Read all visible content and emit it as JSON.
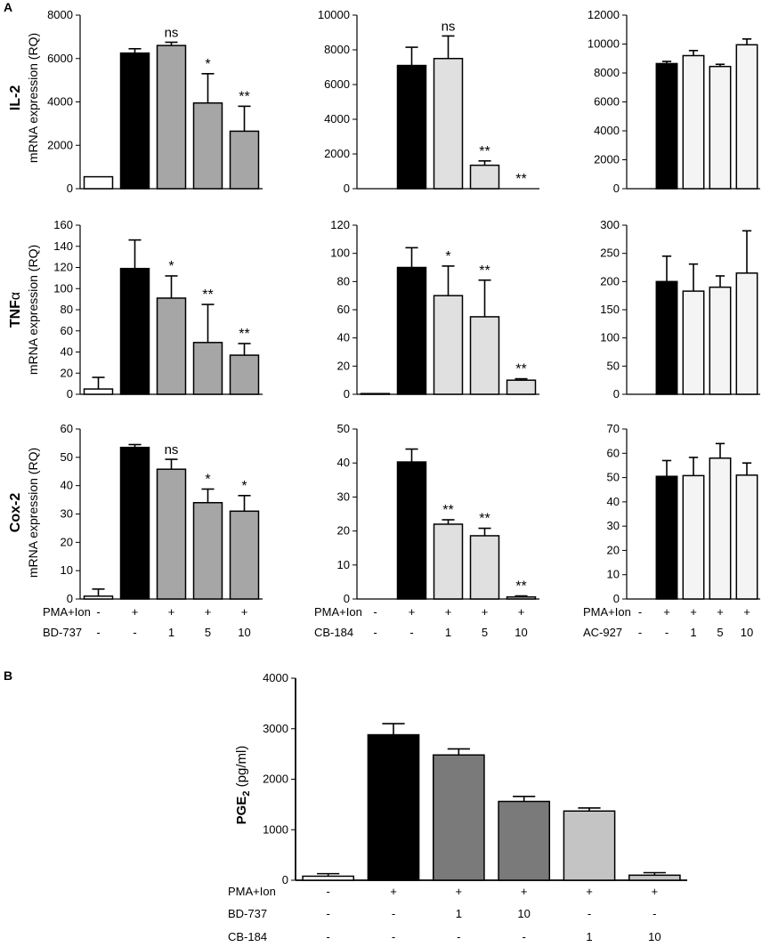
{
  "panel_labels": {
    "a": "A",
    "b": "B"
  },
  "colors": {
    "black": "#000000",
    "mid_gray": "#a6a6a6",
    "light_gray": "#e0e0e0",
    "near_white": "#f4f4f4",
    "white": "#ffffff",
    "dark_gray": "#7a7a7a",
    "silver": "#c4c4c4"
  },
  "row_labels": {
    "il2": {
      "gene": "IL-2",
      "sub": "mRNA expression (RQ)"
    },
    "tnf": {
      "gene": "TNF",
      "greek": "α",
      "sub": "mRNA expression (RQ)"
    },
    "cox2": {
      "gene": "Cox-2",
      "sub": "mRNA expression (RQ)"
    }
  },
  "legend_rows": {
    "a_col1": [
      {
        "label": "PMA+Ion",
        "values": [
          "-",
          "+",
          "+",
          "+",
          "+"
        ]
      },
      {
        "label": "BD-737",
        "values": [
          "-",
          "-",
          "1",
          "5",
          "10"
        ]
      }
    ],
    "a_col2": [
      {
        "label": "PMA+Ion",
        "values": [
          "-",
          "+",
          "+",
          "+",
          "+"
        ]
      },
      {
        "label": "CB-184",
        "values": [
          "-",
          "-",
          "1",
          "5",
          "10"
        ]
      }
    ],
    "a_col3": [
      {
        "label": "PMA+Ion",
        "values": [
          "-",
          "+",
          "+",
          "+",
          "+"
        ]
      },
      {
        "label": "AC-927",
        "values": [
          "-",
          "-",
          "1",
          "5",
          "10"
        ]
      }
    ],
    "b": [
      {
        "label": "PMA+Ion",
        "values": [
          "-",
          "+",
          "+",
          "+",
          "+",
          "+"
        ]
      },
      {
        "label": "BD-737",
        "values": [
          "-",
          "-",
          "1",
          "10",
          "-",
          "-"
        ]
      },
      {
        "label": "CB-184",
        "values": [
          "-",
          "-",
          "-",
          "-",
          "1",
          "10"
        ]
      }
    ]
  },
  "chart_data": [
    {
      "id": "il2_bd737",
      "type": "bar",
      "title": "",
      "ylabel": "IL-2 mRNA expression (RQ)",
      "ylim": [
        0,
        8000
      ],
      "yticks": [
        0,
        2000,
        4000,
        6000,
        8000
      ],
      "categories": [
        "-/-",
        "+/-",
        "+/1",
        "+/5",
        "+/10"
      ],
      "values": [
        550,
        6250,
        6600,
        3950,
        2650
      ],
      "errors": [
        0,
        200,
        150,
        1350,
        1150
      ],
      "colors": [
        "#ffffff",
        "#000000",
        "#a6a6a6",
        "#a6a6a6",
        "#a6a6a6"
      ],
      "annotations": [
        "",
        "",
        "ns",
        "*",
        "**"
      ]
    },
    {
      "id": "il2_cb184",
      "type": "bar",
      "title": "",
      "ylabel": "",
      "ylim": [
        0,
        10000
      ],
      "yticks": [
        0,
        2000,
        4000,
        6000,
        8000,
        10000
      ],
      "categories": [
        "-/-",
        "+/-",
        "+/1",
        "+/5",
        "+/10"
      ],
      "values": [
        0,
        7100,
        7500,
        1350,
        0
      ],
      "errors": [
        0,
        1050,
        1300,
        250,
        0
      ],
      "colors": [
        "#ffffff",
        "#000000",
        "#e0e0e0",
        "#e0e0e0",
        "#e0e0e0"
      ],
      "annotations": [
        "",
        "",
        "ns",
        "**",
        "**"
      ]
    },
    {
      "id": "il2_ac927",
      "type": "bar",
      "title": "",
      "ylabel": "",
      "ylim": [
        0,
        12000
      ],
      "yticks": [
        0,
        2000,
        4000,
        6000,
        8000,
        10000,
        12000
      ],
      "categories": [
        "-/-",
        "+/-",
        "+/1",
        "+/5",
        "+/10"
      ],
      "values": [
        0,
        8650,
        9200,
        8450,
        9950
      ],
      "errors": [
        0,
        150,
        350,
        150,
        400
      ],
      "colors": [
        "#ffffff",
        "#000000",
        "#f4f4f4",
        "#f4f4f4",
        "#f4f4f4"
      ],
      "annotations": [
        "",
        "",
        "",
        "",
        ""
      ]
    },
    {
      "id": "tnf_bd737",
      "type": "bar",
      "title": "",
      "ylabel": "TNFα mRNA expression (RQ)",
      "ylim": [
        0,
        160
      ],
      "yticks": [
        0,
        20,
        40,
        60,
        80,
        100,
        120,
        140,
        160
      ],
      "categories": [
        "-/-",
        "+/-",
        "+/1",
        "+/5",
        "+/10"
      ],
      "values": [
        5,
        119,
        91,
        49,
        37
      ],
      "errors": [
        11,
        27,
        21,
        36,
        11
      ],
      "colors": [
        "#ffffff",
        "#000000",
        "#a6a6a6",
        "#a6a6a6",
        "#a6a6a6"
      ],
      "annotations": [
        "",
        "",
        "*",
        "**",
        "**"
      ]
    },
    {
      "id": "tnf_cb184",
      "type": "bar",
      "title": "",
      "ylabel": "",
      "ylim": [
        0,
        120
      ],
      "yticks": [
        0,
        20,
        40,
        60,
        80,
        100,
        120
      ],
      "categories": [
        "-/-",
        "+/-",
        "+/1",
        "+/5",
        "+/10"
      ],
      "values": [
        0.5,
        90,
        70,
        55,
        10
      ],
      "errors": [
        0,
        14,
        21,
        26,
        1
      ],
      "colors": [
        "#ffffff",
        "#000000",
        "#e0e0e0",
        "#e0e0e0",
        "#e0e0e0"
      ],
      "annotations": [
        "",
        "",
        "*",
        "**",
        "**"
      ]
    },
    {
      "id": "tnf_ac927",
      "type": "bar",
      "title": "",
      "ylabel": "",
      "ylim": [
        0,
        300
      ],
      "yticks": [
        0,
        50,
        100,
        150,
        200,
        250,
        300
      ],
      "categories": [
        "-/-",
        "+/-",
        "+/1",
        "+/5",
        "+/10"
      ],
      "values": [
        0,
        200,
        183,
        190,
        215
      ],
      "errors": [
        0,
        45,
        48,
        20,
        75
      ],
      "colors": [
        "#ffffff",
        "#000000",
        "#f4f4f4",
        "#f4f4f4",
        "#f4f4f4"
      ],
      "annotations": [
        "",
        "",
        "",
        "",
        ""
      ]
    },
    {
      "id": "cox2_bd737",
      "type": "bar",
      "title": "",
      "ylabel": "Cox-2 mRNA expression (RQ)",
      "ylim": [
        0,
        60
      ],
      "yticks": [
        0,
        10,
        20,
        30,
        40,
        50,
        60
      ],
      "categories": [
        "-/-",
        "+/-",
        "+/1",
        "+/5",
        "+/10"
      ],
      "values": [
        1,
        53.5,
        45.8,
        34,
        31
      ],
      "errors": [
        2.5,
        1,
        3.5,
        4.8,
        5.5
      ],
      "colors": [
        "#ffffff",
        "#000000",
        "#a6a6a6",
        "#a6a6a6",
        "#a6a6a6"
      ],
      "annotations": [
        "",
        "",
        "ns",
        "*",
        "*"
      ]
    },
    {
      "id": "cox2_cb184",
      "type": "bar",
      "title": "",
      "ylabel": "",
      "ylim": [
        0,
        50
      ],
      "yticks": [
        0,
        10,
        20,
        30,
        40,
        50
      ],
      "categories": [
        "-/-",
        "+/-",
        "+/1",
        "+/5",
        "+/10"
      ],
      "values": [
        0,
        40.3,
        22,
        18.6,
        0.6
      ],
      "errors": [
        0,
        3.8,
        1.3,
        2.2,
        0.3
      ],
      "colors": [
        "#ffffff",
        "#000000",
        "#e0e0e0",
        "#e0e0e0",
        "#e0e0e0"
      ],
      "annotations": [
        "",
        "",
        "**",
        "**",
        "**"
      ]
    },
    {
      "id": "cox2_ac927",
      "type": "bar",
      "title": "",
      "ylabel": "",
      "ylim": [
        0,
        70
      ],
      "yticks": [
        0,
        10,
        20,
        30,
        40,
        50,
        60,
        70
      ],
      "categories": [
        "-/-",
        "+/-",
        "+/1",
        "+/5",
        "+/10"
      ],
      "values": [
        0,
        50.5,
        50.8,
        58,
        51
      ],
      "errors": [
        0,
        6.5,
        7.5,
        6,
        5
      ],
      "colors": [
        "#ffffff",
        "#000000",
        "#f4f4f4",
        "#f4f4f4",
        "#f4f4f4"
      ],
      "annotations": [
        "",
        "",
        "",
        "",
        ""
      ]
    },
    {
      "id": "pge2",
      "type": "bar",
      "title": "",
      "ylabel": "PGE",
      "ylabel_sub": "2",
      "ylabel_unit": " (pg/ml)",
      "ylim": [
        0,
        4000
      ],
      "yticks": [
        0,
        1000,
        2000,
        3000,
        4000
      ],
      "categories": [
        "-/-/-",
        "+/-/-",
        "+/1/-",
        "+/10/-",
        "+/-/1",
        "+/-/10"
      ],
      "values": [
        80,
        2880,
        2480,
        1560,
        1370,
        100
      ],
      "errors": [
        50,
        220,
        120,
        100,
        60,
        50
      ],
      "colors": [
        "#ffffff",
        "#000000",
        "#7a7a7a",
        "#7a7a7a",
        "#c4c4c4",
        "#c4c4c4"
      ],
      "annotations": [
        "",
        "",
        "",
        "",
        "",
        ""
      ]
    }
  ]
}
